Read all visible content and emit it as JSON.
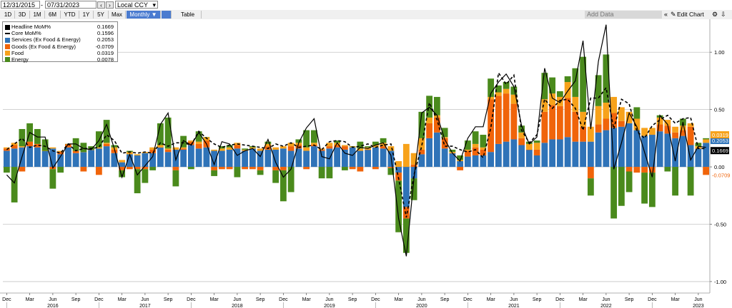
{
  "toolbar": {
    "start_date": "12/31/2015",
    "end_date": "07/31/2023",
    "currency": "Local CCY",
    "periods": [
      "1D",
      "3D",
      "1M",
      "6M",
      "YTD",
      "1Y",
      "5Y",
      "Max"
    ],
    "frequency": "Monthly",
    "table_label": "Table",
    "add_data_placeholder": "Add Data",
    "edit_chart": "Edit Chart"
  },
  "legend": [
    {
      "name": "Headline MoM%",
      "value": "0.1669",
      "color": "#000000"
    },
    {
      "name": "Core MoM%",
      "value": "0.1596",
      "color": "#000000"
    },
    {
      "name": "Services (Ex Food & Energy)",
      "value": "0.2053",
      "color": "#2f73b8"
    },
    {
      "name": "Goods (Ex Food & Energy)",
      "value": "-0.0709",
      "color": "#f0640a"
    },
    {
      "name": "Food",
      "value": "0.0319",
      "color": "#f7a21b"
    },
    {
      "name": "Energy",
      "value": "0.0078",
      "color": "#4a8a1c"
    }
  ],
  "chart_data": {
    "type": "bar",
    "stacked": true,
    "x": [
      "2015-12",
      "2016-01",
      "2016-02",
      "2016-03",
      "2016-04",
      "2016-05",
      "2016-06",
      "2016-07",
      "2016-08",
      "2016-09",
      "2016-10",
      "2016-11",
      "2016-12",
      "2017-01",
      "2017-02",
      "2017-03",
      "2017-04",
      "2017-05",
      "2017-06",
      "2017-07",
      "2017-08",
      "2017-09",
      "2017-10",
      "2017-11",
      "2017-12",
      "2018-01",
      "2018-02",
      "2018-03",
      "2018-04",
      "2018-05",
      "2018-06",
      "2018-07",
      "2018-08",
      "2018-09",
      "2018-10",
      "2018-11",
      "2018-12",
      "2019-01",
      "2019-02",
      "2019-03",
      "2019-04",
      "2019-05",
      "2019-06",
      "2019-07",
      "2019-08",
      "2019-09",
      "2019-10",
      "2019-11",
      "2019-12",
      "2020-01",
      "2020-02",
      "2020-03",
      "2020-04",
      "2020-05",
      "2020-06",
      "2020-07",
      "2020-08",
      "2020-09",
      "2020-10",
      "2020-11",
      "2020-12",
      "2021-01",
      "2021-02",
      "2021-03",
      "2021-04",
      "2021-05",
      "2021-06",
      "2021-07",
      "2021-08",
      "2021-09",
      "2021-10",
      "2021-11",
      "2021-12",
      "2022-01",
      "2022-02",
      "2022-03",
      "2022-04",
      "2022-05",
      "2022-06",
      "2022-07",
      "2022-08",
      "2022-09",
      "2022-10",
      "2022-11",
      "2022-12",
      "2023-01",
      "2023-02",
      "2023-03",
      "2023-04",
      "2023-05",
      "2023-06",
      "2023-07"
    ],
    "series": [
      {
        "name": "Services (Ex Food & Energy)",
        "color": "#2f73b8",
        "values": [
          0.14,
          0.16,
          0.17,
          0.18,
          0.17,
          0.14,
          0.16,
          0.11,
          0.17,
          0.12,
          0.13,
          0.15,
          0.16,
          0.18,
          0.12,
          0.04,
          0.11,
          0.1,
          0.12,
          0.12,
          0.17,
          0.13,
          0.15,
          0.15,
          0.19,
          0.16,
          0.17,
          0.14,
          0.14,
          0.15,
          0.16,
          0.14,
          0.16,
          0.14,
          0.15,
          0.15,
          0.16,
          0.14,
          0.16,
          0.14,
          0.18,
          0.14,
          0.16,
          0.17,
          0.15,
          0.17,
          0.14,
          0.15,
          0.17,
          0.16,
          0.14,
          -0.05,
          -0.35,
          -0.1,
          0.11,
          0.25,
          0.3,
          0.16,
          0.12,
          0.05,
          0.09,
          0.1,
          0.1,
          0.13,
          0.2,
          0.22,
          0.24,
          0.19,
          0.15,
          0.1,
          0.21,
          0.24,
          0.24,
          0.26,
          0.22,
          0.22,
          0.22,
          0.3,
          0.32,
          0.34,
          0.35,
          0.38,
          0.32,
          0.27,
          0.28,
          0.31,
          0.29,
          0.25,
          0.27,
          0.19,
          0.16,
          0.21
        ]
      },
      {
        "name": "Goods (Ex Food & Energy)",
        "color": "#f0640a",
        "values": [
          0.02,
          0.03,
          -0.04,
          0.04,
          0.03,
          0.0,
          -0.02,
          0.02,
          0.03,
          0.02,
          -0.04,
          0.0,
          -0.07,
          0.02,
          0.03,
          -0.03,
          -0.02,
          -0.02,
          -0.02,
          0.03,
          0.0,
          0.02,
          -0.03,
          0.01,
          0.03,
          0.04,
          0.06,
          -0.03,
          -0.02,
          -0.02,
          0.03,
          -0.02,
          -0.02,
          -0.03,
          0.03,
          -0.03,
          -0.03,
          0.04,
          0.03,
          -0.02,
          0.01,
          0.01,
          0.02,
          0.02,
          0.03,
          -0.02,
          -0.04,
          0.0,
          -0.02,
          0.02,
          -0.01,
          -0.07,
          -0.1,
          0.02,
          0.04,
          0.13,
          0.13,
          0.09,
          0.0,
          -0.03,
          0.05,
          0.07,
          0.05,
          0.46,
          0.42,
          0.42,
          0.31,
          0.06,
          0.0,
          0.05,
          0.27,
          0.3,
          0.29,
          0.34,
          0.26,
          0.13,
          -0.1,
          0.07,
          0.1,
          0.13,
          0.05,
          -0.04,
          -0.05,
          -0.05,
          -0.05,
          0.06,
          0.07,
          0.05,
          0.05,
          0.16,
          0.0,
          -0.07
        ]
      },
      {
        "name": "Food",
        "color": "#f7a21b",
        "values": [
          0.01,
          0.02,
          0.01,
          0.0,
          0.0,
          0.0,
          0.01,
          0.01,
          0.0,
          0.0,
          0.0,
          0.0,
          0.01,
          0.01,
          0.02,
          0.02,
          0.02,
          0.01,
          0.01,
          0.02,
          0.02,
          0.01,
          0.02,
          0.01,
          0.01,
          0.02,
          0.03,
          0.01,
          0.02,
          0.02,
          0.02,
          0.01,
          0.01,
          0.02,
          0.02,
          0.02,
          0.02,
          0.03,
          0.02,
          0.03,
          0.02,
          0.01,
          0.03,
          0.02,
          0.01,
          0.01,
          0.02,
          0.02,
          0.02,
          0.03,
          0.04,
          0.05,
          0.2,
          0.1,
          0.1,
          0.05,
          0.02,
          0.01,
          0.01,
          0.01,
          0.01,
          0.03,
          0.02,
          0.02,
          0.03,
          0.04,
          0.08,
          0.05,
          0.05,
          0.06,
          0.11,
          0.1,
          0.08,
          0.14,
          0.13,
          0.13,
          0.13,
          0.16,
          0.14,
          0.14,
          0.12,
          0.1,
          0.1,
          0.07,
          0.06,
          0.06,
          0.05,
          0.05,
          0.04,
          0.03,
          0.02,
          0.03
        ]
      },
      {
        "name": "Energy",
        "color": "#4a8a1c",
        "values": [
          -0.05,
          -0.31,
          0.15,
          0.16,
          0.13,
          0.1,
          -0.17,
          -0.05,
          0.0,
          0.11,
          0.08,
          0.03,
          0.14,
          0.2,
          0.02,
          -0.06,
          0.01,
          -0.21,
          -0.12,
          -0.03,
          0.19,
          0.27,
          -0.14,
          0.1,
          -0.02,
          0.09,
          0.0,
          -0.05,
          0.02,
          0.02,
          -0.09,
          0.01,
          0.01,
          -0.04,
          0.02,
          -0.11,
          -0.27,
          -0.22,
          0.03,
          0.15,
          0.11,
          -0.1,
          -0.1,
          0.02,
          -0.03,
          0.0,
          0.06,
          0.01,
          0.03,
          0.04,
          -0.06,
          -0.45,
          -0.3,
          -0.19,
          0.23,
          0.19,
          0.16,
          0.08,
          0.02,
          0.04,
          0.08,
          0.11,
          0.11,
          0.16,
          0.06,
          0.06,
          0.07,
          0.06,
          0.02,
          0.02,
          0.23,
          0.14,
          0.05,
          0.05,
          0.25,
          0.48,
          -0.15,
          0.27,
          0.42,
          -0.45,
          -0.34,
          -0.18,
          0.1,
          -0.27,
          -0.3,
          0.02,
          -0.04,
          -0.25,
          0.06,
          -0.25,
          0.03,
          0.01
        ]
      }
    ],
    "lines": [
      {
        "name": "Headline MoM%",
        "style": "solid",
        "color": "#000000",
        "values": [
          -0.07,
          -0.14,
          0.09,
          0.3,
          0.26,
          0.26,
          -0.01,
          0.09,
          0.2,
          0.2,
          0.16,
          0.15,
          0.23,
          0.37,
          0.16,
          -0.09,
          0.11,
          -0.07,
          0.01,
          0.09,
          0.37,
          0.47,
          0.06,
          0.23,
          0.19,
          0.3,
          0.2,
          0.02,
          0.22,
          0.2,
          0.1,
          0.14,
          0.16,
          0.09,
          0.24,
          0.04,
          -0.09,
          -0.02,
          0.21,
          0.34,
          0.42,
          0.09,
          0.07,
          0.21,
          0.12,
          0.1,
          0.17,
          0.16,
          0.19,
          0.21,
          0.1,
          -0.45,
          -0.78,
          -0.1,
          0.47,
          0.52,
          0.45,
          0.24,
          0.12,
          0.05,
          0.25,
          0.35,
          0.35,
          0.64,
          0.74,
          0.81,
          0.7,
          0.36,
          0.2,
          0.26,
          0.86,
          0.6,
          0.56,
          0.66,
          0.75,
          1.1,
          0.33,
          0.92,
          1.24,
          -0.02,
          0.21,
          0.47,
          0.35,
          0.13,
          -0.09,
          0.45,
          0.37,
          0.05,
          0.39,
          0.06,
          0.18,
          0.17
        ]
      },
      {
        "name": "Core MoM%",
        "style": "dashed",
        "color": "#000000",
        "values": [
          0.15,
          0.2,
          0.25,
          0.17,
          0.19,
          0.18,
          0.14,
          0.12,
          0.2,
          0.14,
          0.16,
          0.16,
          0.17,
          0.28,
          0.23,
          0.12,
          0.13,
          0.12,
          0.13,
          0.12,
          0.21,
          0.18,
          0.21,
          0.21,
          0.19,
          0.31,
          0.25,
          0.2,
          0.17,
          0.19,
          0.2,
          0.19,
          0.18,
          0.17,
          0.16,
          0.2,
          0.18,
          0.21,
          0.17,
          0.18,
          0.19,
          0.15,
          0.22,
          0.23,
          0.22,
          0.17,
          0.18,
          0.2,
          0.17,
          0.19,
          0.2,
          -0.1,
          -0.44,
          -0.07,
          0.18,
          0.56,
          0.41,
          0.18,
          0.18,
          0.15,
          0.13,
          0.15,
          0.08,
          0.34,
          0.82,
          0.72,
          0.8,
          0.32,
          0.21,
          0.28,
          0.59,
          0.51,
          0.58,
          0.59,
          0.51,
          0.32,
          0.6,
          0.6,
          0.69,
          0.33,
          0.59,
          0.55,
          0.31,
          0.25,
          0.36,
          0.41,
          0.45,
          0.38,
          0.42,
          0.43,
          0.16,
          0.16
        ]
      }
    ],
    "last_value_labels": [
      {
        "text": "0.2053",
        "color": "#2f73b8",
        "value": 0.2053
      },
      {
        "text": "0.1669",
        "color": "#000000",
        "value": 0.1669
      },
      {
        "text": "-0.0709",
        "color": "#f0640a",
        "value": -0.0709
      },
      {
        "text": "0.0319",
        "color": "#f7a21b",
        "value": 0.0319
      }
    ],
    "y_ticks": [
      1.0,
      0.5,
      0.0,
      -0.5,
      -1.0
    ],
    "y_tick_labels": [
      "1.00",
      "0.50",
      "0.00",
      "-0.50",
      "-1.00"
    ],
    "ylim": [
      -1.1,
      1.25
    ],
    "month_ticks": [
      {
        "i": 0,
        "label": "Dec"
      },
      {
        "i": 3,
        "label": "Mar"
      },
      {
        "i": 6,
        "label": "Jun"
      },
      {
        "i": 9,
        "label": "Sep"
      },
      {
        "i": 12,
        "label": "Dec"
      },
      {
        "i": 15,
        "label": "Mar"
      },
      {
        "i": 18,
        "label": "Jun"
      },
      {
        "i": 21,
        "label": "Sep"
      },
      {
        "i": 24,
        "label": "Dec"
      },
      {
        "i": 27,
        "label": "Mar"
      },
      {
        "i": 30,
        "label": "Jun"
      },
      {
        "i": 33,
        "label": "Sep"
      },
      {
        "i": 36,
        "label": "Dec"
      },
      {
        "i": 39,
        "label": "Mar"
      },
      {
        "i": 42,
        "label": "Jun"
      },
      {
        "i": 45,
        "label": "Sep"
      },
      {
        "i": 48,
        "label": "Dec"
      },
      {
        "i": 51,
        "label": "Mar"
      },
      {
        "i": 54,
        "label": "Jun"
      },
      {
        "i": 57,
        "label": "Sep"
      },
      {
        "i": 60,
        "label": "Dec"
      },
      {
        "i": 63,
        "label": "Mar"
      },
      {
        "i": 66,
        "label": "Jun"
      },
      {
        "i": 69,
        "label": "Sep"
      },
      {
        "i": 72,
        "label": "Dec"
      },
      {
        "i": 75,
        "label": "Mar"
      },
      {
        "i": 78,
        "label": "Jun"
      },
      {
        "i": 81,
        "label": "Sep"
      },
      {
        "i": 84,
        "label": "Dec"
      },
      {
        "i": 87,
        "label": "Mar"
      },
      {
        "i": 90,
        "label": "Jun"
      }
    ],
    "year_ticks": [
      {
        "i": 6,
        "label": "2016"
      },
      {
        "i": 18,
        "label": "2017"
      },
      {
        "i": 30,
        "label": "2018"
      },
      {
        "i": 42,
        "label": "2019"
      },
      {
        "i": 54,
        "label": "2020"
      },
      {
        "i": 66,
        "label": "2021"
      },
      {
        "i": 78,
        "label": "2022"
      },
      {
        "i": 90,
        "label": "2023"
      }
    ],
    "grid": true
  }
}
